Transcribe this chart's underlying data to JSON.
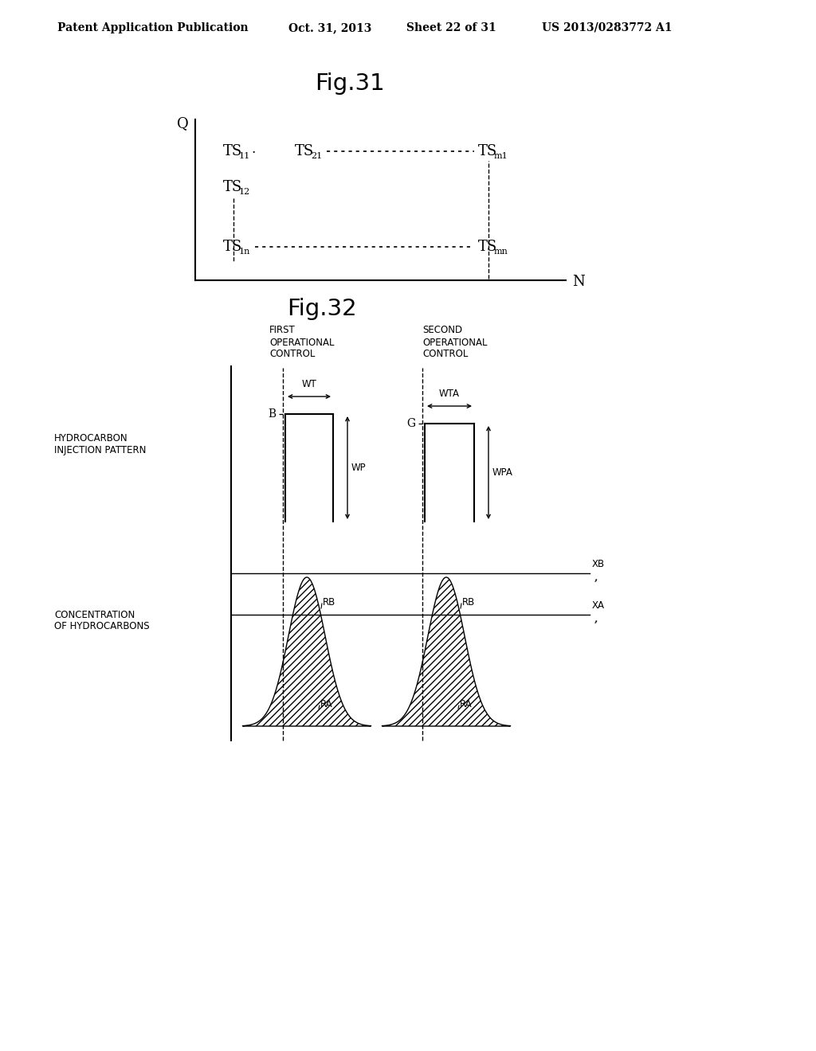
{
  "bg_color": "#ffffff",
  "header_text": "Patent Application Publication",
  "header_date": "Oct. 31, 2013",
  "header_sheet": "Sheet 22 of 31",
  "header_patent": "US 2013/0283772 A1",
  "fig31_title": "Fig.31",
  "fig32_title": "Fig.32"
}
